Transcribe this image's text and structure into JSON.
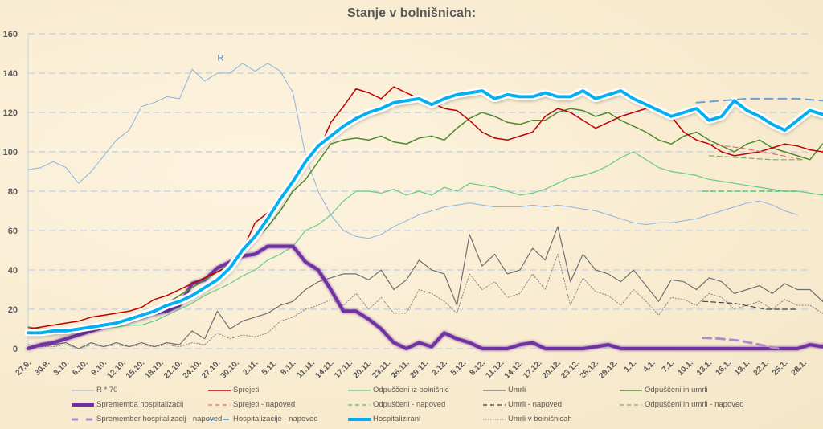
{
  "chart_data": {
    "type": "line",
    "title": "Stanje v bolnišnicah:",
    "xlabel": "",
    "ylabel": "",
    "ylim": [
      0,
      160
    ],
    "yticks": [
      0,
      20,
      40,
      60,
      80,
      100,
      120,
      140,
      160
    ],
    "grid": true,
    "legend_position": "bottom",
    "x_start_date": "27.9.",
    "x_tick_labels": [
      "27.9.",
      "30.9.",
      "3.10.",
      "6.10.",
      "9.10.",
      "12.10.",
      "15.10.",
      "18.10.",
      "21.10.",
      "24.10.",
      "27.10.",
      "30.10.",
      "2.11.",
      "5.11.",
      "8.11.",
      "11.11.",
      "14.11.",
      "17.11.",
      "20.11.",
      "23.11.",
      "26.11.",
      "29.11.",
      "2.12.",
      "5.12.",
      "8.12.",
      "11.12.",
      "14.12.",
      "17.12.",
      "20.12.",
      "23.12.",
      "26.12.",
      "29.12.",
      "1.1.",
      "4.1.",
      "7.1.",
      "10.1.",
      "13.1.",
      "16.1.",
      "19.1.",
      "22.1.",
      "25.1.",
      "28.1."
    ],
    "x_day_step": 3,
    "x_days_total": 123,
    "annotations": [
      {
        "text": "R",
        "day": 30,
        "value": 148
      }
    ],
    "series": [
      {
        "name": "R * 70",
        "key": "r70",
        "color": "#8db4e2",
        "style": "solid",
        "width": 1,
        "start_day": 0,
        "day_step": 2,
        "values": [
          91,
          92,
          95,
          92,
          84,
          90,
          98,
          106,
          111,
          123,
          125,
          128,
          127,
          142,
          136,
          140,
          140,
          145,
          141,
          145,
          141,
          130,
          98,
          80,
          68,
          60,
          57,
          56,
          58,
          62,
          65,
          68,
          70,
          72,
          73,
          74,
          73,
          72,
          72,
          72,
          73,
          72,
          73,
          72,
          71,
          70,
          68,
          66,
          64,
          63,
          64,
          64,
          65,
          66,
          68,
          70,
          72,
          74,
          75,
          73,
          70,
          68
        ]
      },
      {
        "name": "Sprejeti",
        "key": "sprejeti",
        "color": "#c00000",
        "style": "solid",
        "width": 1.5,
        "start_day": 0,
        "day_step": 2,
        "values": [
          10,
          11,
          12,
          13,
          14,
          16,
          17,
          18,
          19,
          21,
          25,
          27,
          30,
          33,
          36,
          39,
          42,
          50,
          64,
          69,
          78,
          88,
          95,
          100,
          115,
          123,
          132,
          130,
          127,
          133,
          130,
          127,
          125,
          122,
          121,
          116,
          110,
          107,
          106,
          108,
          110,
          118,
          122,
          120,
          116,
          112,
          115,
          118,
          120,
          122,
          120,
          118,
          110,
          106,
          104,
          100,
          98,
          99,
          100,
          102,
          104,
          103,
          101,
          100,
          98,
          100,
          103,
          105,
          108,
          113
        ]
      },
      {
        "name": "Odpuščeni iz bolnišnic",
        "key": "odpusceni",
        "color": "#66cc88",
        "style": "solid",
        "width": 1.2,
        "start_day": 0,
        "day_step": 2,
        "values": [
          9,
          9,
          9,
          9,
          10,
          10,
          11,
          11,
          12,
          12,
          14,
          17,
          20,
          23,
          27,
          30,
          33,
          37,
          40,
          45,
          48,
          52,
          60,
          63,
          68,
          75,
          80,
          80,
          79,
          81,
          78,
          80,
          78,
          82,
          80,
          84,
          83,
          82,
          80,
          78,
          79,
          81,
          84,
          87,
          88,
          90,
          93,
          97,
          100,
          96,
          92,
          90,
          89,
          88,
          86,
          85,
          84,
          83,
          82,
          81,
          80,
          80,
          79,
          78,
          77,
          75,
          72,
          78,
          82,
          82,
          80,
          77
        ]
      },
      {
        "name": "Umrli",
        "key": "umrli",
        "color": "#707070",
        "style": "solid",
        "width": 1.2,
        "start_day": 0,
        "day_step": 2,
        "values": [
          2,
          1,
          2,
          3,
          0,
          3,
          1,
          3,
          1,
          3,
          1,
          3,
          2,
          9,
          5,
          19,
          10,
          14,
          16,
          18,
          22,
          24,
          30,
          34,
          36,
          38,
          38,
          35,
          40,
          30,
          35,
          45,
          40,
          38,
          22,
          58,
          42,
          48,
          38,
          40,
          51,
          45,
          62,
          34,
          48,
          40,
          38,
          34,
          40,
          32,
          24,
          35,
          34,
          30,
          36,
          34,
          28,
          30,
          32,
          28,
          33,
          30,
          30,
          24,
          45,
          30,
          25,
          24,
          23,
          22,
          31,
          18
        ]
      },
      {
        "name": "Odpuščeni in umrli",
        "key": "odpusceni_umrli",
        "color": "#4e8a2e",
        "style": "solid",
        "width": 1.5,
        "start_day": 0,
        "day_step": 2,
        "values": [
          11,
          10,
          10,
          10,
          10,
          11,
          12,
          14,
          16,
          18,
          20,
          23,
          27,
          31,
          35,
          39,
          43,
          48,
          55,
          62,
          70,
          80,
          86,
          95,
          104,
          106,
          107,
          106,
          108,
          105,
          104,
          107,
          108,
          106,
          112,
          117,
          120,
          118,
          115,
          114,
          116,
          116,
          120,
          122,
          121,
          118,
          120,
          116,
          113,
          110,
          106,
          104,
          108,
          110,
          106,
          103,
          100,
          104,
          106,
          102,
          100,
          98,
          96,
          104,
          102,
          104,
          104,
          100,
          96
        ]
      },
      {
        "name": "Sprememba hospitalizacij",
        "key": "sprememba",
        "color": "#7030a0",
        "style": "solid",
        "width": 4,
        "start_day": 0,
        "day_step": 2,
        "values": [
          0,
          2,
          3,
          5,
          7,
          9,
          11,
          13,
          14,
          16,
          18,
          19,
          22,
          33,
          35,
          41,
          44,
          47,
          48,
          52,
          52,
          52,
          44,
          40,
          30,
          19,
          19,
          15,
          10,
          3,
          0,
          3,
          1,
          8,
          5,
          3,
          0,
          0,
          0,
          2,
          3,
          0,
          0,
          0,
          0,
          1,
          2,
          0,
          0,
          0,
          0,
          0,
          0,
          0,
          0,
          0,
          0,
          0,
          0,
          0,
          0,
          0,
          2,
          1,
          5,
          3,
          0,
          7,
          17
        ]
      },
      {
        "name": "Hospitalizirani",
        "key": "hospitalizirani",
        "color": "#00b0f0",
        "style": "solid",
        "width": 4,
        "start_day": 0,
        "day_step": 2,
        "values": [
          8,
          8,
          9,
          9,
          10,
          11,
          12,
          13,
          15,
          17,
          19,
          22,
          24,
          27,
          31,
          35,
          41,
          50,
          57,
          66,
          76,
          85,
          95,
          103,
          108,
          113,
          117,
          120,
          122,
          125,
          126,
          127,
          124,
          127,
          129,
          130,
          131,
          127,
          129,
          128,
          128,
          130,
          128,
          128,
          131,
          127,
          129,
          131,
          127,
          124,
          121,
          118,
          120,
          122,
          116,
          118,
          126,
          121,
          118,
          114,
          111,
          116,
          121,
          119,
          117,
          114,
          118,
          120,
          121,
          125
        ]
      },
      {
        "name": "Umrli v bolnišnicah",
        "key": "umrli_bolnisnice",
        "color": "#8a8a8a",
        "style": "dotted",
        "width": 1,
        "start_day": 0,
        "day_step": 2,
        "values": [
          1,
          1,
          1,
          2,
          0,
          2,
          1,
          2,
          1,
          2,
          1,
          2,
          1,
          3,
          2,
          8,
          5,
          7,
          6,
          8,
          14,
          16,
          20,
          22,
          25,
          22,
          28,
          20,
          26,
          18,
          18,
          30,
          28,
          24,
          18,
          38,
          30,
          34,
          26,
          28,
          38,
          30,
          48,
          22,
          36,
          29,
          27,
          22,
          30,
          24,
          17,
          26,
          25,
          22,
          28,
          26,
          20,
          22,
          24,
          20,
          25,
          22,
          22,
          18,
          26,
          20,
          19,
          19,
          18,
          17,
          22,
          13
        ]
      },
      {
        "name": "Sprejeti - napoved",
        "key": "sprejeti_nap",
        "color": "#e07070",
        "style": "dashed",
        "width": 1.2,
        "start_day": 108,
        "day_step": 5,
        "values": [
          104,
          102,
          99,
          96
        ]
      },
      {
        "name": "Odpuščeni - napoved",
        "key": "odpusceni_nap",
        "color": "#44bb66",
        "style": "dashed",
        "width": 1.2,
        "start_day": 107,
        "day_step": 5,
        "values": [
          80,
          80,
          80,
          80
        ]
      },
      {
        "name": "Umrli - napoved",
        "key": "umrli_nap",
        "color": "#404040",
        "style": "dashed",
        "width": 1.2,
        "start_day": 107,
        "day_step": 5,
        "values": [
          24,
          23,
          20,
          20
        ]
      },
      {
        "name": "Odpuščeni in umrli - napoved",
        "key": "odpusceni_umrli_nap",
        "color": "#8aaa66",
        "style": "dashed",
        "width": 1.2,
        "start_day": 108,
        "day_step": 5,
        "values": [
          98,
          97,
          96,
          96
        ]
      },
      {
        "name": "Sprememba hospitalizacij - napoved",
        "key": "sprememba_nap",
        "color": "#b08acb",
        "style": "dashed",
        "width": 3,
        "start_day": 107,
        "day_step": 3,
        "values": [
          5.5,
          5,
          4,
          2,
          0
        ]
      },
      {
        "name": "Hospitalizacije - napoved",
        "key": "hosp_nap",
        "color": "#6aa0d8",
        "style": "dashed",
        "width": 2,
        "start_day": 106,
        "day_step": 4,
        "values": [
          125,
          126,
          127,
          127,
          127,
          126
        ]
      }
    ]
  },
  "legend": [
    {
      "label": "R * 70",
      "key": "r70"
    },
    {
      "label": "Sprejeti",
      "key": "sprejeti"
    },
    {
      "label": "Odpuščeni iz bolnišnic",
      "key": "odpusceni"
    },
    {
      "label": "Umrli",
      "key": "umrli"
    },
    {
      "label": "Odpuščeni in umrli",
      "key": "odpusceni_umrli"
    },
    {
      "label": "Sprememba hospitalizacij",
      "key": "sprememba"
    },
    {
      "label": "Sprejeti - napoved",
      "key": "sprejeti_nap"
    },
    {
      "label": "Odpuščeni - napoved",
      "key": "odpusceni_nap"
    },
    {
      "label": "Umrli - napoved",
      "key": "umrli_nap"
    },
    {
      "label": "Odpuščeni in umrli - napoved",
      "key": "odpusceni_umrli_nap"
    },
    {
      "label": "Spremember hospitalizacij - napoved",
      "key": "sprememba_nap"
    },
    {
      "label": "Hospitalizacije - napoved",
      "key": "hosp_nap"
    },
    {
      "label": "Hospitalizirani",
      "key": "hospitalizirani"
    },
    {
      "label": "Umrli v bolnišnicah",
      "key": "umrli_bolnisnice"
    }
  ]
}
